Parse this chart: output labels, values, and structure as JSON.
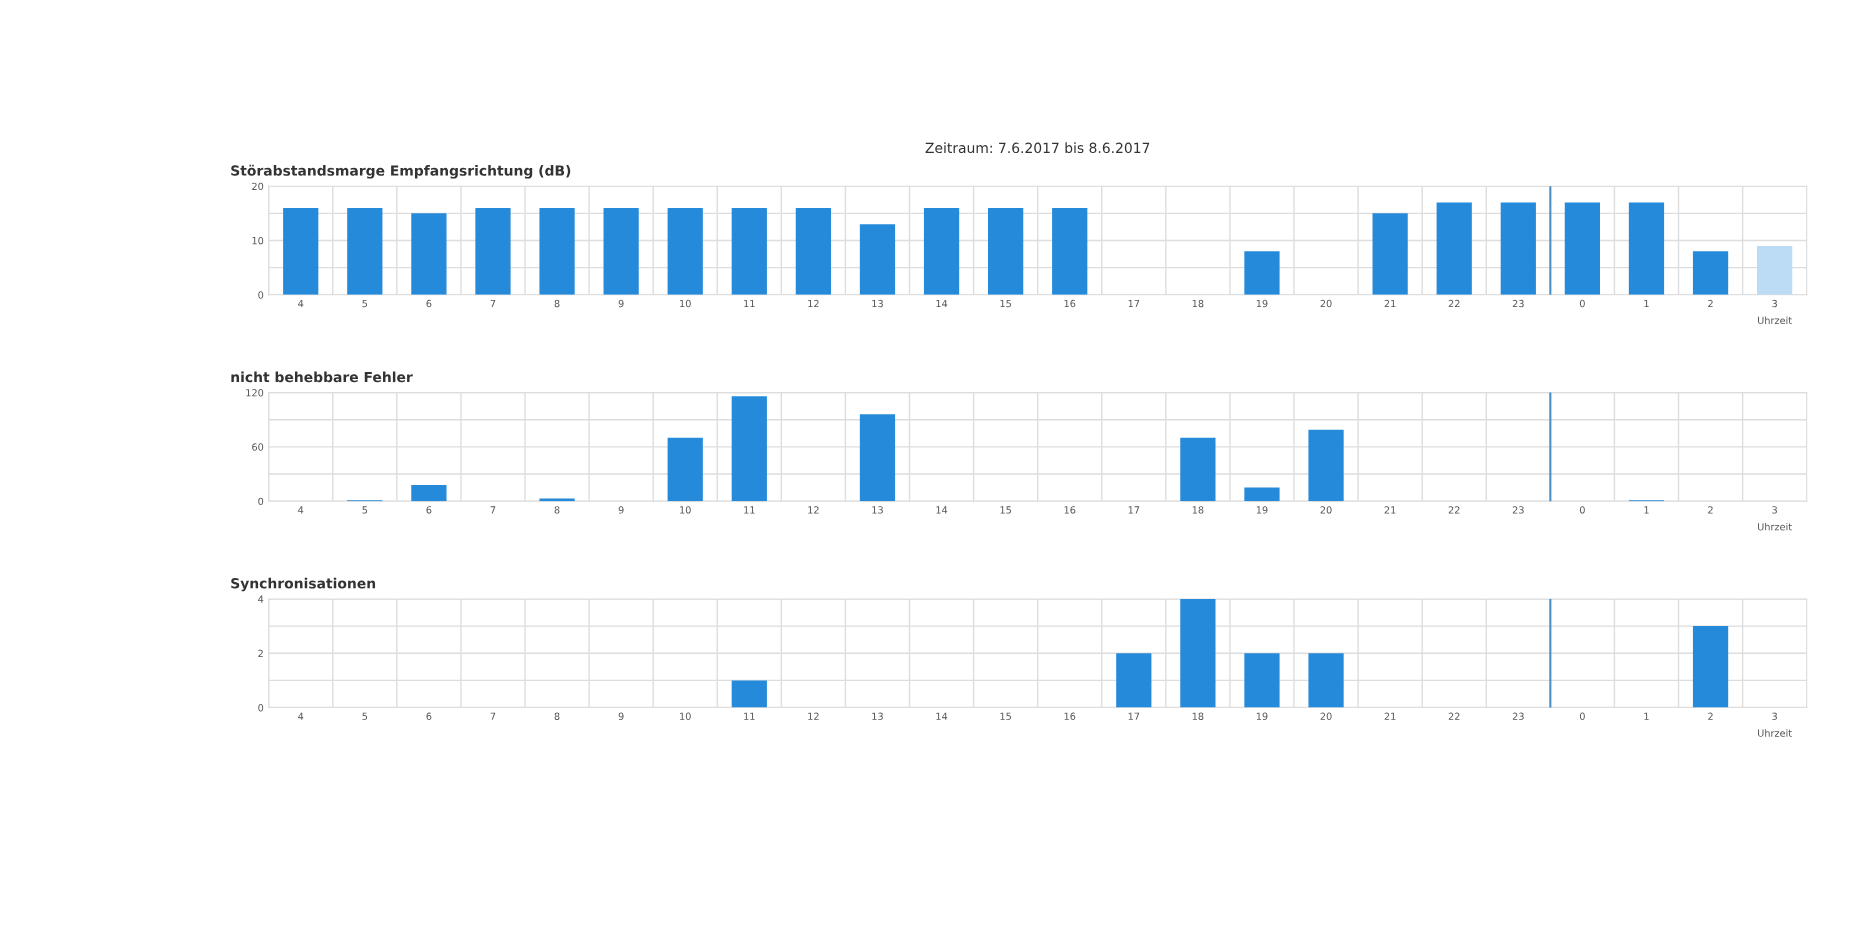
{
  "chart_data": [
    {
      "type": "bar",
      "title": "Störabstandsmarge Empfangsrichtung (dB)",
      "xlabel": "Uhrzeit",
      "annotations": [
        "Zeitraum: 7.6.2017 bis 8.6.2017"
      ],
      "categories": [
        "4",
        "5",
        "6",
        "7",
        "8",
        "9",
        "10",
        "11",
        "12",
        "13",
        "14",
        "15",
        "16",
        "17",
        "18",
        "19",
        "20",
        "21",
        "22",
        "23",
        "0",
        "1",
        "2",
        "3"
      ],
      "values": [
        16,
        16,
        15,
        16,
        16,
        16,
        16,
        16,
        16,
        13,
        16,
        16,
        16,
        0,
        0,
        8,
        0,
        15,
        17,
        17,
        17,
        17,
        8,
        9
      ],
      "colors": [
        "#258ad9",
        "#258ad9",
        "#258ad9",
        "#258ad9",
        "#258ad9",
        "#258ad9",
        "#258ad9",
        "#258ad9",
        "#258ad9",
        "#258ad9",
        "#258ad9",
        "#258ad9",
        "#258ad9",
        "#258ad9",
        "#258ad9",
        "#258ad9",
        "#258ad9",
        "#258ad9",
        "#258ad9",
        "#258ad9",
        "#258ad9",
        "#258ad9",
        "#258ad9",
        "#bcdcf5"
      ],
      "ylim": [
        0,
        20
      ],
      "yticks": [
        0,
        {
          "value": 5,
          "label": null
        },
        10,
        {
          "value": 15,
          "label": null
        },
        20
      ],
      "grid": true,
      "ref_lines": [
        {
          "axis": "x",
          "value": "0",
          "color": "#4a90c8"
        }
      ]
    },
    {
      "type": "bar",
      "title": "nicht behebbare Fehler",
      "xlabel": "Uhrzeit",
      "categories": [
        "4",
        "5",
        "6",
        "7",
        "8",
        "9",
        "10",
        "11",
        "12",
        "13",
        "14",
        "15",
        "16",
        "17",
        "18",
        "19",
        "20",
        "21",
        "22",
        "23",
        "0",
        "1",
        "2",
        "3"
      ],
      "values": [
        0,
        1,
        18,
        0,
        3,
        0,
        70,
        116,
        0,
        96,
        0,
        0,
        0,
        0,
        70,
        15,
        79,
        0,
        0,
        0,
        0,
        1,
        0,
        0
      ],
      "color": "#258ad9",
      "ylim": [
        0,
        120
      ],
      "yticks": [
        0,
        {
          "value": 30,
          "label": null
        },
        60,
        {
          "value": 90,
          "label": null
        },
        120
      ],
      "grid": true,
      "ref_lines": [
        {
          "axis": "x",
          "value": "0",
          "color": "#4a90c8"
        }
      ]
    },
    {
      "type": "bar",
      "title": "Synchronisationen",
      "xlabel": "Uhrzeit",
      "categories": [
        "4",
        "5",
        "6",
        "7",
        "8",
        "9",
        "10",
        "11",
        "12",
        "13",
        "14",
        "15",
        "16",
        "17",
        "18",
        "19",
        "20",
        "21",
        "22",
        "23",
        "0",
        "1",
        "2",
        "3"
      ],
      "values": [
        0,
        0,
        0,
        0,
        0,
        0,
        0,
        1,
        0,
        0,
        0,
        0,
        0,
        2,
        4,
        2,
        2,
        0,
        0,
        0,
        0,
        0,
        3,
        0
      ],
      "color": "#258ad9",
      "ylim": [
        0,
        4
      ],
      "yticks": [
        0,
        {
          "value": 1,
          "label": null
        },
        2,
        {
          "value": 3,
          "label": null
        },
        4
      ],
      "grid": true,
      "ref_lines": [
        {
          "axis": "x",
          "value": "0",
          "color": "#4a90c8"
        }
      ]
    }
  ]
}
